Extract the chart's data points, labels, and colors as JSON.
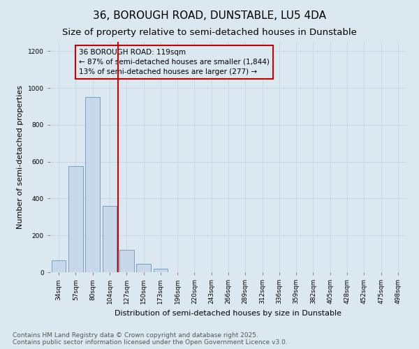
{
  "title_line1": "36, BOROUGH ROAD, DUNSTABLE, LU5 4DA",
  "title_line2": "Size of property relative to semi-detached houses in Dunstable",
  "xlabel": "Distribution of semi-detached houses by size in Dunstable",
  "ylabel": "Number of semi-detached properties",
  "categories": [
    "34sqm",
    "57sqm",
    "80sqm",
    "104sqm",
    "127sqm",
    "150sqm",
    "173sqm",
    "196sqm",
    "220sqm",
    "243sqm",
    "266sqm",
    "289sqm",
    "312sqm",
    "336sqm",
    "359sqm",
    "382sqm",
    "405sqm",
    "428sqm",
    "452sqm",
    "475sqm",
    "498sqm"
  ],
  "values": [
    65,
    575,
    950,
    360,
    120,
    45,
    18,
    0,
    0,
    0,
    0,
    0,
    0,
    0,
    0,
    0,
    0,
    0,
    0,
    0,
    0
  ],
  "bar_color": "#c8d8ea",
  "bar_edge_color": "#6699bb",
  "annotation_text": "36 BOROUGH ROAD: 119sqm\n← 87% of semi-detached houses are smaller (1,844)\n13% of semi-detached houses are larger (277) →",
  "annotation_box_color": "#cc0000",
  "vline_color": "#cc0000",
  "vline_x_index": 4,
  "ylim": [
    0,
    1250
  ],
  "yticks": [
    0,
    200,
    400,
    600,
    800,
    1000,
    1200
  ],
  "grid_color": "#c8d8e8",
  "background_color": "#dce8f0",
  "footnote": "Contains HM Land Registry data © Crown copyright and database right 2025.\nContains public sector information licensed under the Open Government Licence v3.0.",
  "title_fontsize": 11,
  "subtitle_fontsize": 9.5,
  "axis_label_fontsize": 8,
  "tick_fontsize": 6.5,
  "annotation_fontsize": 7.5,
  "footnote_fontsize": 6.5
}
